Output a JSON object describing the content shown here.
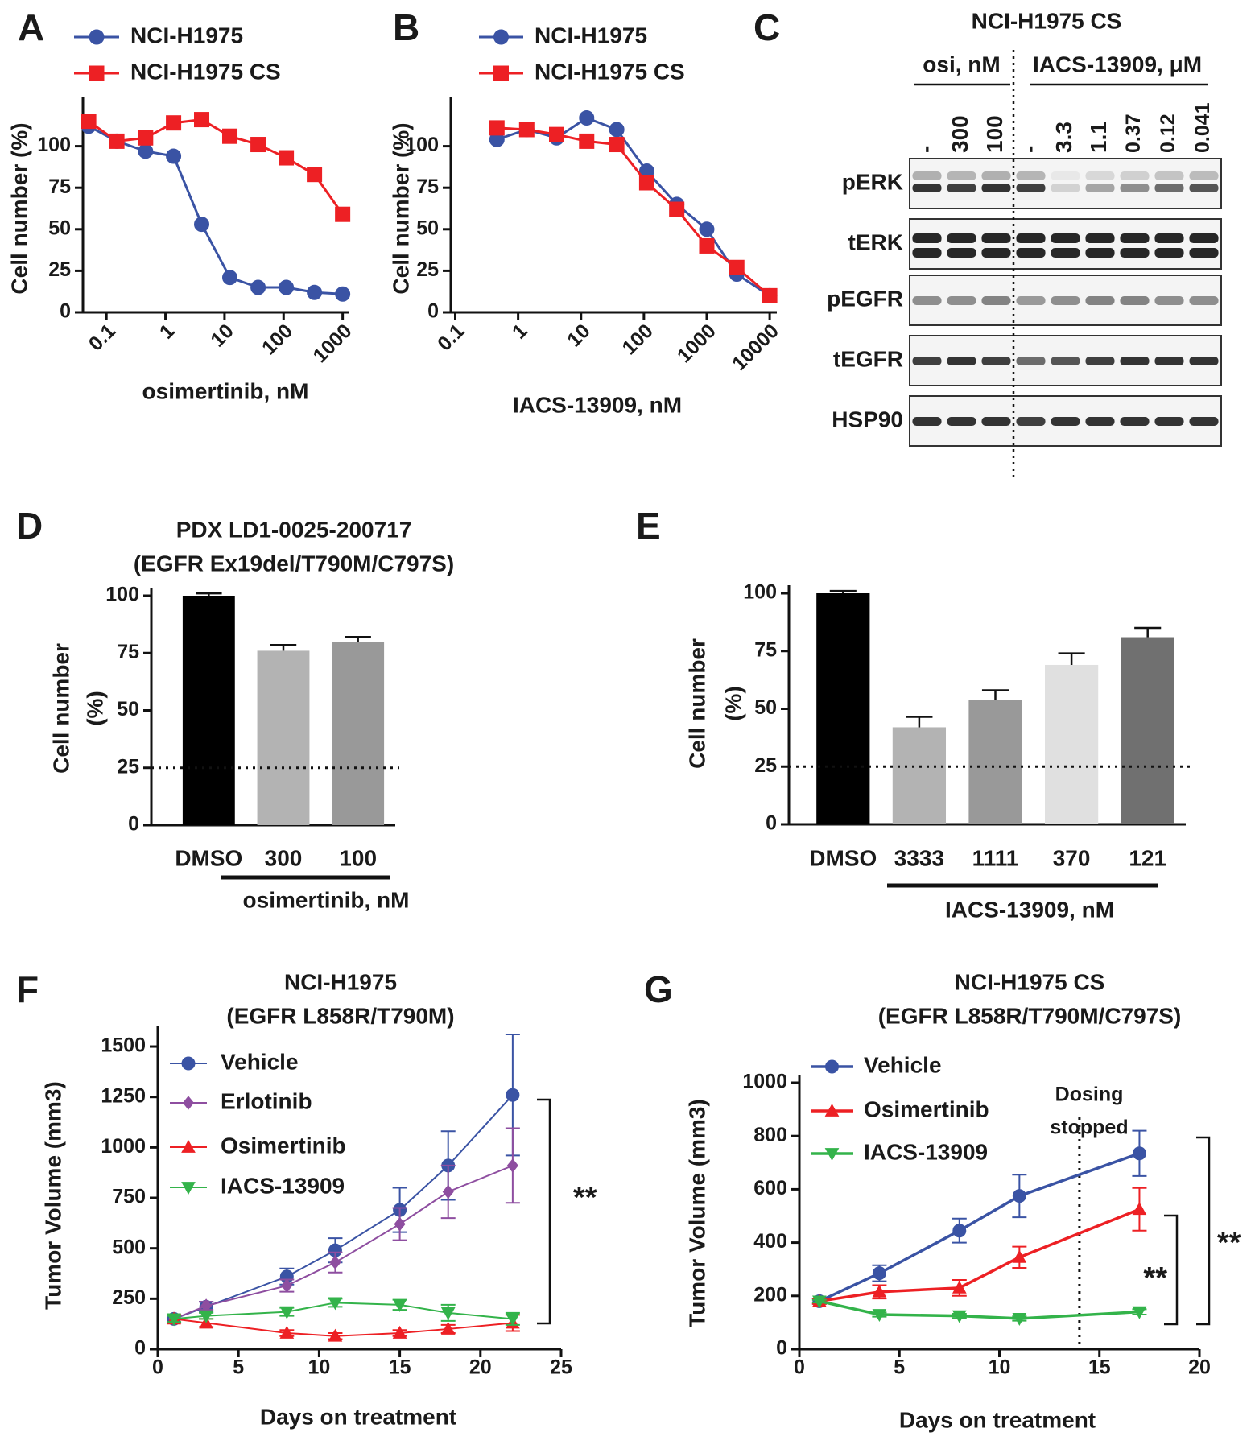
{
  "chart_data": [
    {
      "type": "line",
      "panel": "A",
      "x_label": "osimertinib, nM",
      "y_label": "Cell number (%)",
      "x_scale": "log",
      "x": [
        0.05,
        0.15,
        0.46,
        1.37,
        4.1,
        12.3,
        37,
        111,
        333,
        1000
      ],
      "xlim": [
        0.04,
        1300
      ],
      "xticks": [
        0.1,
        1,
        10,
        100,
        1000
      ],
      "ylim": [
        0,
        125
      ],
      "yticks": [
        0,
        25,
        50,
        75,
        100
      ],
      "series": [
        {
          "name": "NCI-H1975",
          "color": "#3a53a4",
          "marker": "circle",
          "values": [
            112,
            103,
            97,
            94,
            53,
            21,
            15,
            15,
            12,
            11
          ]
        },
        {
          "name": "NCI-H1975 CS",
          "color": "#ed2024",
          "marker": "square",
          "values": [
            115,
            103,
            105,
            114,
            116,
            106,
            101,
            93,
            83,
            59
          ]
        }
      ]
    },
    {
      "type": "line",
      "panel": "B",
      "x_label": "IACS-13909, nM",
      "y_label": "Cell number (%)",
      "x_scale": "log",
      "x": [
        0.46,
        1.37,
        4.1,
        12.3,
        37,
        111,
        333,
        1000,
        3000,
        10000
      ],
      "xlim": [
        0.085,
        13000
      ],
      "xticks": [
        0.1,
        1,
        10,
        100,
        1000,
        10000
      ],
      "ylim": [
        0,
        125
      ],
      "yticks": [
        0,
        25,
        50,
        75,
        100
      ],
      "series": [
        {
          "name": "NCI-H1975",
          "color": "#3a53a4",
          "marker": "circle",
          "values": [
            104,
            110,
            105,
            117,
            110,
            85,
            65,
            50,
            23,
            10
          ]
        },
        {
          "name": "NCI-H1975 CS",
          "color": "#ed2024",
          "marker": "square",
          "values": [
            111,
            110,
            107,
            103,
            101,
            78,
            62,
            40,
            27,
            10
          ]
        }
      ]
    },
    {
      "type": "bar",
      "panel": "D",
      "title": [
        "PDX LD1-0025-200717",
        "(EGFR Ex19del/T790M/C797S)"
      ],
      "y_label": [
        "Cell number",
        "(%)"
      ],
      "x_label": "osimertinib, nM",
      "categories": [
        "DMSO",
        "300",
        "100"
      ],
      "values": [
        100,
        76,
        80
      ],
      "errors": [
        1,
        2.5,
        2
      ],
      "colors": [
        "#000000",
        "#b3b3b3",
        "#999999"
      ],
      "ylim": [
        0,
        100
      ],
      "yticks": [
        0,
        25,
        50,
        75,
        100
      ],
      "hline": 25
    },
    {
      "type": "bar",
      "panel": "E",
      "y_label": [
        "Cell number",
        "(%)"
      ],
      "x_label": "IACS-13909, nM",
      "categories": [
        "DMSO",
        "3333",
        "1111",
        "370",
        "121"
      ],
      "values": [
        100,
        42,
        54,
        69,
        81
      ],
      "errors": [
        1,
        4.5,
        4,
        5,
        4
      ],
      "colors": [
        "#000000",
        "#b3b3b3",
        "#999999",
        "#e0e0e0",
        "#707070"
      ],
      "ylim": [
        0,
        100
      ],
      "yticks": [
        0,
        25,
        50,
        75,
        100
      ],
      "hline": 25
    },
    {
      "type": "line",
      "panel": "F",
      "title": [
        "NCI-H1975",
        "(EGFR L858R/T790M)"
      ],
      "x_label": "Days on treatment",
      "y_label": "Tumor Volume (mm3)",
      "x": [
        1,
        3,
        8,
        11,
        15,
        18,
        22
      ],
      "xlim": [
        0,
        25
      ],
      "xticks": [
        0,
        5,
        10,
        15,
        20,
        25
      ],
      "ylim": [
        0,
        1560
      ],
      "yticks": [
        0,
        250,
        500,
        750,
        1000,
        1250,
        1500
      ],
      "series": [
        {
          "name": "Vehicle",
          "color": "#3a53a4",
          "marker": "circle",
          "values": [
            150,
            210,
            360,
            490,
            690,
            910,
            1260
          ],
          "errors": [
            20,
            25,
            40,
            60,
            110,
            170,
            300
          ]
        },
        {
          "name": "Erlotinib",
          "color": "#8e4ea0",
          "marker": "diamond",
          "values": [
            150,
            215,
            315,
            430,
            620,
            780,
            910
          ],
          "errors": [
            20,
            20,
            30,
            50,
            80,
            130,
            185
          ]
        },
        {
          "name": "Osimertinib",
          "color": "#ed2024",
          "marker": "triangle",
          "values": [
            150,
            130,
            80,
            65,
            80,
            100,
            130
          ],
          "errors": [
            20,
            20,
            15,
            15,
            15,
            20,
            40
          ]
        },
        {
          "name": "IACS-13909",
          "color": "#33b34a",
          "marker": "triangle-down",
          "values": [
            150,
            165,
            185,
            230,
            220,
            180,
            150
          ],
          "errors": [
            15,
            15,
            20,
            20,
            25,
            40,
            30
          ]
        }
      ],
      "annotations": [
        "**"
      ]
    },
    {
      "type": "line",
      "panel": "G",
      "title": [
        "NCI-H1975 CS",
        "(EGFR L858R/T790M/C797S)"
      ],
      "x_label": "Days on treatment",
      "y_label": "Tumor Volume (mm3)",
      "x": [
        1,
        4,
        8,
        11,
        17
      ],
      "xlim": [
        0,
        20
      ],
      "xticks": [
        0,
        5,
        10,
        15,
        20
      ],
      "ylim": [
        0,
        1000
      ],
      "yticks": [
        0,
        200,
        400,
        600,
        800,
        1000
      ],
      "vline": 14,
      "vline_label": [
        "Dosing",
        "stopped"
      ],
      "series": [
        {
          "name": "Vehicle",
          "color": "#3a53a4",
          "marker": "circle",
          "values": [
            180,
            285,
            445,
            575,
            735
          ],
          "errors": [
            10,
            30,
            45,
            80,
            85
          ]
        },
        {
          "name": "Osimertinib",
          "color": "#ed2024",
          "marker": "triangle",
          "values": [
            180,
            215,
            230,
            345,
            525
          ],
          "errors": [
            10,
            25,
            30,
            40,
            80
          ]
        },
        {
          "name": "IACS-13909",
          "color": "#33b34a",
          "marker": "triangle-down",
          "values": [
            180,
            130,
            125,
            115,
            140
          ],
          "errors": [
            5,
            8,
            8,
            8,
            10
          ]
        }
      ],
      "annotations": [
        "**",
        "**"
      ]
    }
  ],
  "blot": {
    "panel": "C",
    "title": "NCI-H1975 CS",
    "groups": [
      "osi, nM",
      "IACS-13909, μM"
    ],
    "lanes": [
      "-",
      "300",
      "100",
      "-",
      "3.3",
      "1.1",
      "0.37",
      "0.12",
      "0.041"
    ],
    "rows": [
      "pERK",
      "tERK",
      "pEGFR",
      "tEGFR",
      "HSP90"
    ]
  }
}
